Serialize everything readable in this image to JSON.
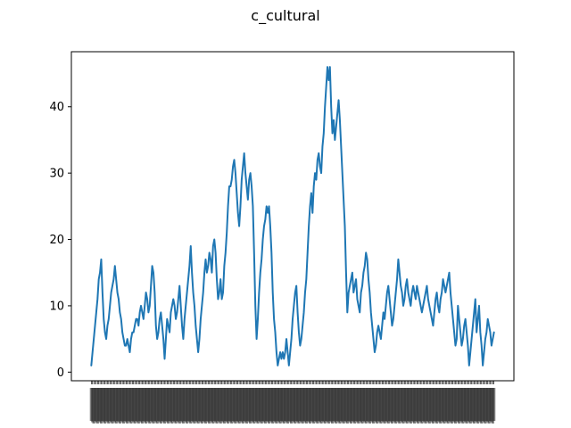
{
  "chart_data": {
    "type": "line",
    "title": "c_cultural",
    "xlabel": "",
    "ylabel": "",
    "ylim": [
      -1.3,
      48.3
    ],
    "yticks": [
      0,
      10,
      20,
      30,
      40
    ],
    "grid": false,
    "legend": "none",
    "x_tick_labels_visible": false,
    "color": "#1f77b4",
    "series": [
      {
        "values": [
          1,
          3,
          5,
          7,
          9,
          11,
          14,
          15,
          17,
          12,
          8,
          6,
          5,
          7,
          8,
          10,
          12,
          13,
          14,
          16,
          14,
          12,
          11,
          9,
          8,
          6,
          5,
          4,
          4,
          5,
          4,
          3,
          5,
          6,
          6,
          7,
          8,
          8,
          7,
          9,
          10,
          9,
          8,
          10,
          12,
          11,
          9,
          10,
          13,
          16,
          15,
          12,
          7,
          5,
          6,
          8,
          9,
          7,
          5,
          2,
          5,
          8,
          7,
          6,
          9,
          10,
          11,
          10,
          8,
          9,
          11,
          13,
          10,
          7,
          5,
          8,
          10,
          12,
          14,
          16,
          19,
          15,
          12,
          10,
          7,
          5,
          3,
          5,
          8,
          10,
          12,
          15,
          17,
          15,
          16,
          18,
          17,
          15,
          19,
          20,
          18,
          14,
          11,
          12,
          14,
          11,
          12,
          16,
          18,
          21,
          25,
          28,
          28,
          29,
          31,
          32,
          30,
          27,
          24,
          22,
          25,
          29,
          31,
          33,
          30,
          28,
          26,
          29,
          30,
          28,
          25,
          18,
          10,
          5,
          8,
          12,
          15,
          17,
          20,
          22,
          23,
          25,
          24,
          25,
          22,
          18,
          12,
          8,
          6,
          3,
          1,
          2,
          3,
          2,
          3,
          2,
          3,
          5,
          3,
          1,
          3,
          5,
          8,
          10,
          12,
          13,
          9,
          6,
          4,
          5,
          7,
          9,
          12,
          14,
          18,
          22,
          25,
          27,
          24,
          28,
          30,
          29,
          32,
          33,
          31,
          30,
          34,
          36,
          40,
          43,
          46,
          44,
          46,
          40,
          36,
          38,
          35,
          37,
          39,
          41,
          38,
          34,
          30,
          26,
          22,
          15,
          9,
          12,
          13,
          14,
          15,
          12,
          13,
          14,
          11,
          10,
          9,
          12,
          13,
          15,
          16,
          18,
          17,
          14,
          12,
          9,
          7,
          5,
          3,
          4,
          6,
          7,
          6,
          5,
          7,
          9,
          8,
          10,
          12,
          13,
          11,
          9,
          7,
          8,
          10,
          12,
          14,
          17,
          15,
          13,
          12,
          10,
          11,
          13,
          14,
          12,
          11,
          10,
          12,
          13,
          12,
          11,
          13,
          12,
          11,
          10,
          9,
          10,
          11,
          12,
          13,
          11,
          10,
          9,
          8,
          7,
          9,
          11,
          12,
          10,
          9,
          11,
          12,
          14,
          13,
          12,
          13,
          14,
          15,
          12,
          10,
          8,
          6,
          4,
          5,
          10,
          8,
          6,
          4,
          5,
          7,
          8,
          6,
          4,
          1,
          3,
          5,
          7,
          9,
          11,
          6,
          8,
          10,
          6,
          4,
          1,
          3,
          5,
          6,
          8,
          7,
          6,
          4,
          5,
          6
        ]
      }
    ]
  }
}
